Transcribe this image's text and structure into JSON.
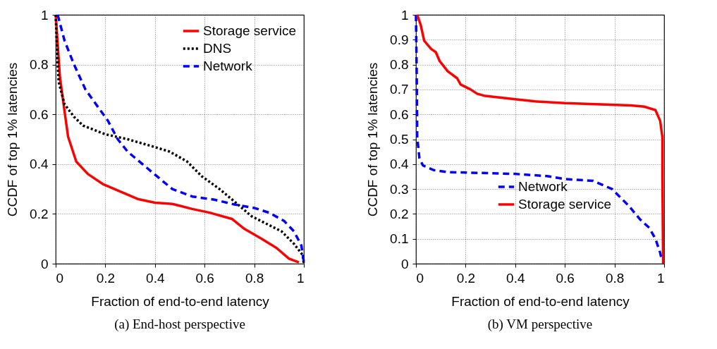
{
  "chart_data": [
    {
      "type": "line",
      "title": "(a) End-host perspective",
      "xlabel": "Fraction of end-to-end latency",
      "ylabel": "CCDF of top 1% latencies",
      "xlim": [
        0,
        1
      ],
      "ylim": [
        0,
        1
      ],
      "xticks": [
        0,
        0.2,
        0.4,
        0.6,
        0.8,
        1
      ],
      "yticks": [
        0,
        0.2,
        0.4,
        0.6,
        0.8,
        1
      ],
      "grid": true,
      "legend": "top right",
      "series": [
        {
          "name": "Storage service",
          "color": "#ff0000",
          "line_style": "solid",
          "x": [
            0,
            0.017,
            0.036,
            0.05,
            0.083,
            0.13,
            0.19,
            0.26,
            0.33,
            0.4,
            0.47,
            0.55,
            0.62,
            0.71,
            0.76,
            0.83,
            0.89,
            0.94,
            0.98
          ],
          "values": [
            1,
            0.75,
            0.61,
            0.51,
            0.41,
            0.36,
            0.32,
            0.29,
            0.26,
            0.245,
            0.24,
            0.22,
            0.205,
            0.18,
            0.14,
            0.1,
            0.063,
            0.02,
            0.005
          ]
        },
        {
          "name": "DNS",
          "color": "#000000",
          "line_style": "dotted",
          "x": [
            0,
            0.006,
            0.012,
            0.036,
            0.074,
            0.11,
            0.2,
            0.29,
            0.395,
            0.46,
            0.53,
            0.59,
            0.66,
            0.72,
            0.79,
            0.85,
            0.91,
            0.96,
            0.995,
            1
          ],
          "values": [
            1,
            0.85,
            0.73,
            0.64,
            0.59,
            0.555,
            0.52,
            0.5,
            0.47,
            0.45,
            0.41,
            0.35,
            0.3,
            0.25,
            0.19,
            0.16,
            0.13,
            0.08,
            0.035,
            0
          ]
        },
        {
          "name": "Network",
          "color": "#0000ff",
          "line_style": "dashed",
          "x": [
            0.008,
            0.036,
            0.074,
            0.12,
            0.17,
            0.21,
            0.25,
            0.29,
            0.35,
            0.39,
            0.47,
            0.55,
            0.64,
            0.72,
            0.8,
            0.86,
            0.92,
            0.96,
            0.99,
            1
          ],
          "values": [
            1,
            0.895,
            0.8,
            0.7,
            0.63,
            0.575,
            0.5,
            0.45,
            0.4,
            0.366,
            0.3,
            0.27,
            0.257,
            0.238,
            0.224,
            0.205,
            0.172,
            0.13,
            0.073,
            0.007
          ]
        }
      ]
    },
    {
      "type": "line",
      "title": "(b) VM perspective",
      "xlabel": "Fraction of end-to-end latency",
      "ylabel": "CCDF of top 1% latencies",
      "xlim": [
        0,
        1
      ],
      "ylim": [
        0,
        1
      ],
      "xticks": [
        0,
        0.2,
        0.4,
        0.6,
        0.8,
        1
      ],
      "yticks": [
        0,
        0.1,
        0.2,
        0.3,
        0.4,
        0.5,
        0.6,
        0.7,
        0.8,
        0.9,
        1
      ],
      "grid": true,
      "legend": "bottom right",
      "series": [
        {
          "name": "Network",
          "color": "#0000ff",
          "line_style": "dashed",
          "x": [
            0,
            0.003,
            0.005,
            0.014,
            0.028,
            0.071,
            0.128,
            0.395,
            0.528,
            0.6,
            0.714,
            0.79,
            0.856,
            0.904,
            0.94,
            0.965,
            0.984,
            0.99
          ],
          "values": [
            1,
            0.754,
            0.508,
            0.423,
            0.395,
            0.376,
            0.368,
            0.361,
            0.352,
            0.34,
            0.333,
            0.3,
            0.234,
            0.177,
            0.144,
            0.1,
            0.044,
            0.016
          ]
        },
        {
          "name": "Storage service",
          "color": "#ff0000",
          "line_style": "solid",
          "x": [
            0.005,
            0.019,
            0.033,
            0.061,
            0.08,
            0.095,
            0.128,
            0.166,
            0.18,
            0.22,
            0.246,
            0.279,
            0.4,
            0.48,
            0.6,
            0.866,
            0.92,
            0.965,
            0.984,
            0.993,
            0.993,
            0.996
          ],
          "values": [
            1,
            0.96,
            0.896,
            0.863,
            0.85,
            0.815,
            0.773,
            0.745,
            0.72,
            0.7,
            0.683,
            0.674,
            0.661,
            0.652,
            0.645,
            0.636,
            0.631,
            0.617,
            0.574,
            0.508,
            0.357,
            0
          ]
        }
      ]
    }
  ]
}
